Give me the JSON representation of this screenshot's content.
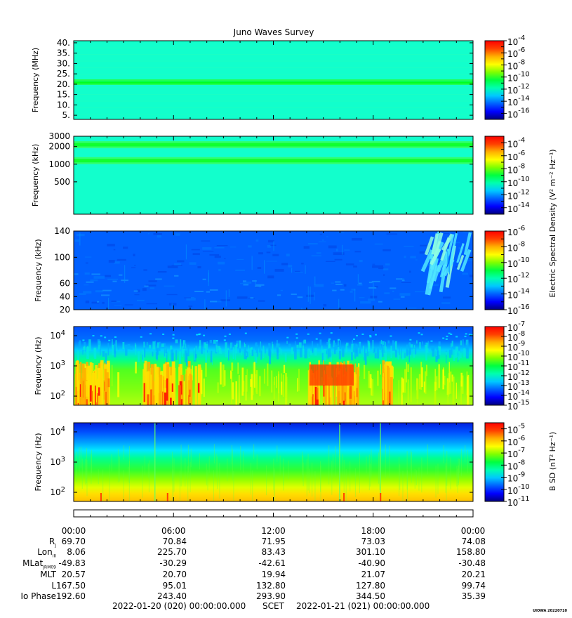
{
  "title": "Juno Waves Survey",
  "colors": {
    "colormap": [
      "#00007f",
      "#0000ff",
      "#0060ff",
      "#00c8ff",
      "#00ffb0",
      "#00ff40",
      "#7fff00",
      "#ffff00",
      "#ffb000",
      "#ff4000",
      "#ff0000"
    ],
    "background": "#00ffd0"
  },
  "chart_data": [
    {
      "type": "heatmap",
      "panel": "E-field HFR high",
      "ylabel": "Frequency (MHz)",
      "yticks": [
        "40.",
        "35.",
        "30.",
        "25.",
        "20.",
        "15.",
        "10.",
        "5."
      ],
      "ytick_values": [
        40,
        35,
        30,
        25,
        20,
        15,
        10,
        5
      ],
      "ylim": [
        3,
        41
      ],
      "yscale": "linear",
      "xlim_hours": [
        0,
        24
      ],
      "features": [
        {
          "freq_MHz": 21,
          "level": "enhanced band"
        }
      ],
      "colorbar": {
        "labels": [
          "-4",
          "-6",
          "-8",
          "-10",
          "-12",
          "-14",
          "-16"
        ],
        "base": "10",
        "range": [
          -17,
          -4
        ]
      }
    },
    {
      "type": "heatmap",
      "panel": "E-field HFR low",
      "ylabel": "Frequency (kHz)",
      "yticks": [
        "3000",
        "2000",
        "1000",
        "500"
      ],
      "ytick_values": [
        3000,
        2000,
        1000,
        500
      ],
      "ylim": [
        140,
        3000
      ],
      "yscale": "log",
      "xlim_hours": [
        0,
        24
      ],
      "features": [
        {
          "freq_kHz": 2150,
          "level": "enhanced band"
        },
        {
          "freq_kHz": 1150,
          "level": "enhanced band"
        }
      ],
      "colorbar": {
        "labels": [
          "-4",
          "-6",
          "-8",
          "-10",
          "-12",
          "-14"
        ],
        "base": "10",
        "range": [
          -15,
          -3
        ],
        "title": "Electric Spectral Density (V² m⁻² Hz⁻¹)"
      }
    },
    {
      "type": "heatmap",
      "panel": "E-field LFR high",
      "ylabel": "Frequency (kHz)",
      "yticks": [
        "140",
        "100",
        "60",
        "40",
        "20"
      ],
      "ytick_values": [
        140,
        100,
        60,
        40,
        20
      ],
      "ylim": [
        20,
        140
      ],
      "yscale": "linear",
      "xlim_hours": [
        0,
        24
      ],
      "features": [
        {
          "hours": [
            21,
            24
          ],
          "level": "emission streaks"
        }
      ],
      "colorbar": {
        "labels": [
          "-6",
          "-8",
          "-10",
          "-12",
          "-14",
          "-16"
        ],
        "base": "10",
        "range": [
          -16,
          -6
        ]
      }
    },
    {
      "type": "heatmap",
      "panel": "E-field LFR low",
      "ylabel": "Frequency (Hz)",
      "yticks": [
        "10",
        "10",
        "10"
      ],
      "ytick_exponents": [
        "4",
        "3",
        "2"
      ],
      "ytick_values": [
        10000,
        1000,
        100
      ],
      "ylim": [
        50,
        20000
      ],
      "yscale": "log",
      "xlim_hours": [
        0,
        24
      ],
      "features": [
        {
          "hours": [
            0,
            2
          ],
          "level": "intense"
        },
        {
          "hours": [
            4,
            7.5
          ],
          "level": "intense"
        },
        {
          "hours": [
            14,
            17
          ],
          "level": "intense"
        },
        {
          "hours": [
            18.5,
            19
          ],
          "level": "intense"
        }
      ],
      "colorbar": {
        "labels": [
          "-7",
          "-8",
          "-9",
          "-10",
          "-11",
          "-12",
          "-13",
          "-14",
          "-15"
        ],
        "base": "10",
        "range": [
          -15,
          -7
        ]
      }
    },
    {
      "type": "heatmap",
      "panel": "B-field",
      "ylabel": "Frequency (Hz)",
      "yticks": [
        "10",
        "10",
        "10"
      ],
      "ytick_exponents": [
        "4",
        "3",
        "2"
      ],
      "ytick_values": [
        10000,
        1000,
        100
      ],
      "ylim": [
        50,
        20000
      ],
      "yscale": "log",
      "xlim_hours": [
        0,
        24
      ],
      "colorbar": {
        "labels": [
          "-5",
          "-6",
          "-7",
          "-8",
          "-9",
          "-10",
          "-11"
        ],
        "base": "10",
        "range": [
          -11,
          -4.5
        ],
        "title": "B SD (nT² Hz⁻¹)"
      }
    }
  ],
  "x_axis": {
    "ticks": [
      "00:00",
      "06:00",
      "12:00",
      "18:00",
      "00:00"
    ],
    "tick_hours": [
      0,
      6,
      12,
      18,
      24
    ]
  },
  "ephemeris": {
    "rows": [
      {
        "label": "R",
        "sub": "J",
        "values": [
          "69.70",
          "70.84",
          "71.95",
          "73.03",
          "74.08"
        ]
      },
      {
        "label": "Lon",
        "sub": "III",
        "values": [
          "8.06",
          "225.70",
          "83.43",
          "301.10",
          "158.80"
        ]
      },
      {
        "label": "MLat",
        "sub": "JRM09",
        "values": [
          "-49.83",
          "-30.29",
          "-42.61",
          "-40.90",
          "-30.48"
        ]
      },
      {
        "label": "MLT",
        "sub": "",
        "values": [
          "20.57",
          "20.70",
          "19.94",
          "21.07",
          "20.21"
        ]
      },
      {
        "label": "L",
        "sub": "",
        "values": [
          "167.50",
          "95.01",
          "132.80",
          "127.80",
          "99.74"
        ]
      },
      {
        "label": "Io Phase",
        "sub": "",
        "values": [
          "192.60",
          "243.40",
          "293.90",
          "344.50",
          "35.39"
        ]
      }
    ]
  },
  "footer": {
    "start": "2022-01-20 (020) 00:00:00.000",
    "scet": "SCET",
    "end": "2022-01-21 (021) 00:00:00.000"
  },
  "stamp": "UIOWA 20220710"
}
